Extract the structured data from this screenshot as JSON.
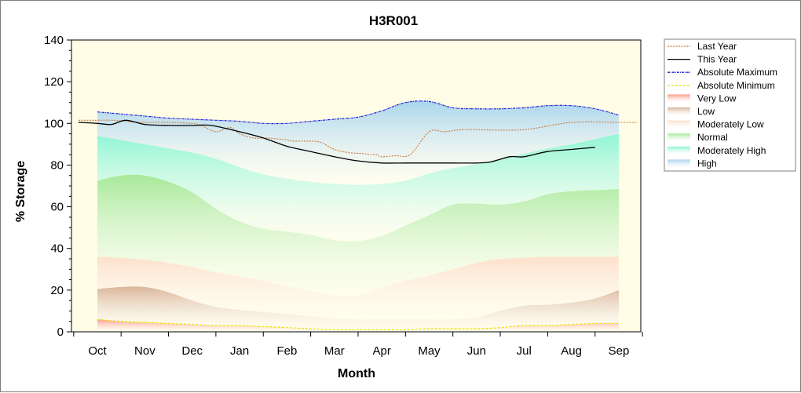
{
  "chart_data": {
    "type": "area",
    "title": "H3R001",
    "xlabel": "Month",
    "ylabel": "% Storage",
    "ylim": [
      0,
      140
    ],
    "yticks": [
      0,
      20,
      40,
      60,
      80,
      100,
      120,
      140
    ],
    "categories": [
      "Oct",
      "Nov",
      "Dec",
      "Jan",
      "Feb",
      "Mar",
      "Apr",
      "May",
      "Jun",
      "Jul",
      "Aug",
      "Sep"
    ],
    "x": [
      0,
      0.5,
      1,
      1.5,
      2,
      2.5,
      3,
      3.5,
      4,
      4.5,
      5,
      5.5,
      6,
      6.5,
      7,
      7.5,
      8,
      8.5,
      9,
      9.5,
      10,
      10.5,
      11
    ],
    "band_bounds": {
      "absolute_minimum": [
        6,
        5,
        4.5,
        4,
        3.5,
        3,
        3,
        2.5,
        2,
        1.5,
        1,
        1,
        1,
        1,
        1.5,
        1.5,
        1.5,
        2,
        3,
        3,
        3.5,
        4,
        4
      ],
      "very_low_top": [
        20.5,
        21.5,
        21.5,
        19,
        15,
        12,
        10.5,
        9.5,
        8.5,
        7.5,
        6.5,
        6,
        6,
        6,
        6,
        6,
        7,
        10,
        12.5,
        13,
        14,
        16,
        20
      ],
      "low_top": [
        36,
        35.5,
        34.5,
        33,
        31,
        28.5,
        26.5,
        24.5,
        22,
        19.5,
        17.5,
        17.5,
        21.5,
        24.5,
        27,
        30,
        33,
        35,
        35.5,
        36,
        36,
        36,
        36
      ],
      "moderately_low_top": [
        72.5,
        75,
        75,
        72,
        67,
        59,
        53,
        49.5,
        48,
        46.5,
        44,
        43.5,
        46,
        51,
        56,
        61,
        61.5,
        61,
        62.5,
        66,
        67.5,
        68,
        68.5
      ],
      "normal_top": [
        94,
        92,
        90,
        88,
        86,
        83,
        79,
        75.5,
        73.5,
        72,
        71,
        70.5,
        71,
        72.5,
        76,
        78.5,
        80.5,
        83,
        85.5,
        88,
        90,
        92.5,
        95
      ],
      "moderately_high_top": [
        94,
        92,
        90,
        88,
        86,
        83,
        79,
        75.5,
        73.5,
        72,
        71,
        70.5,
        71,
        72.5,
        76,
        78.5,
        80.5,
        83,
        85.5,
        88,
        90,
        92.5,
        95
      ],
      "absolute_maximum": [
        105.5,
        104.5,
        103.5,
        102.5,
        102,
        101.5,
        101,
        100,
        100,
        101,
        102,
        103,
        106,
        110,
        110.5,
        107.5,
        107,
        107,
        107.5,
        108.5,
        108.5,
        107,
        104
      ]
    },
    "series": [
      {
        "name": "Last Year",
        "x": [
          -0.4,
          0,
          0.3,
          0.6,
          1,
          1.5,
          2,
          2.2,
          2.5,
          2.8,
          3,
          3.3,
          3.6,
          4,
          4.1,
          4.4,
          4.7,
          5,
          5.3,
          5.6,
          5.8,
          5.9,
          6,
          6.3,
          6.6,
          7,
          7.3,
          7.5,
          7.7,
          8,
          9,
          10,
          11,
          11.4
        ],
        "values": [
          101.5,
          101.5,
          101.5,
          101,
          100.5,
          100.5,
          100,
          99,
          96,
          98,
          95,
          93,
          93,
          92,
          91.5,
          91.5,
          91,
          87.5,
          86,
          85.5,
          85,
          85,
          84,
          84.5,
          85,
          96,
          96,
          96.5,
          97,
          97,
          97,
          100.5,
          100.5,
          100.5
        ]
      },
      {
        "name": "This Year",
        "x": [
          -0.4,
          0,
          0.3,
          0.6,
          1,
          1.5,
          2,
          2.4,
          3,
          3.5,
          4,
          4.5,
          5,
          5.5,
          6,
          6.5,
          7,
          7.5,
          8,
          8.3,
          8.7,
          9,
          9.5,
          10,
          10.5
        ],
        "values": [
          100.5,
          100,
          99.5,
          101.5,
          99.5,
          99,
          99,
          99,
          96,
          93,
          89,
          86.5,
          84,
          82,
          81,
          81,
          81,
          81,
          81,
          81.5,
          84,
          84,
          86.5,
          87.5,
          88.5
        ]
      },
      {
        "name": "Absolute Maximum"
      },
      {
        "name": "Absolute Minimum"
      }
    ],
    "bands": [
      {
        "name": "Very Low",
        "color": "#f9a08c"
      },
      {
        "name": "Low",
        "color": "#d9b59a"
      },
      {
        "name": "Moderately Low",
        "color": "#fde0cb"
      },
      {
        "name": "Normal",
        "color": "#a7e99a"
      },
      {
        "name": "Moderately High",
        "color": "#8ff5d4"
      },
      {
        "name": "High",
        "color": "#a9d4ec"
      }
    ],
    "line_colors": {
      "last_year": "#c87a3a",
      "this_year": "#000000",
      "absolute_maximum": "#1d1dd6",
      "absolute_minimum": "#e6e600"
    },
    "background_color": "#fffde6",
    "grid": false,
    "legend_position": "right"
  }
}
